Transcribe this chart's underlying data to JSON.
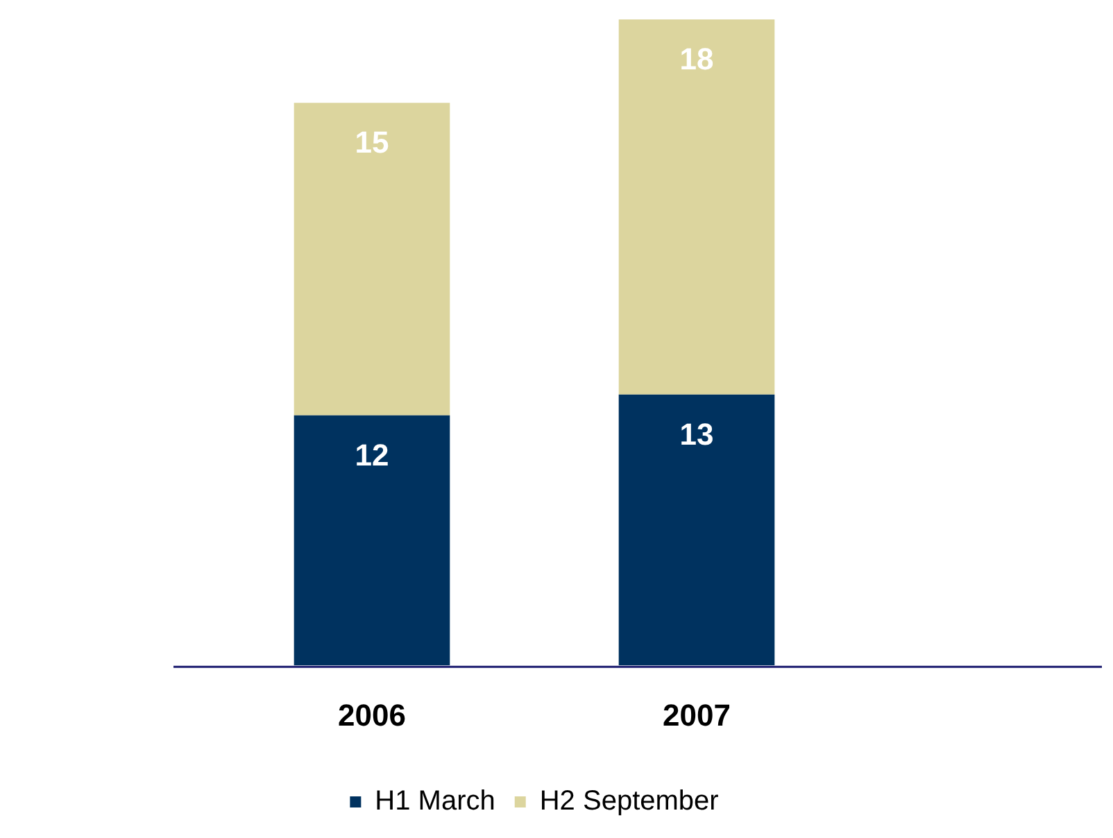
{
  "chart_data": {
    "type": "bar",
    "stacked": true,
    "categories": [
      "2006",
      "2007"
    ],
    "series": [
      {
        "name": "H1 March",
        "color": "#00325f",
        "values": [
          12,
          13
        ]
      },
      {
        "name": "H2 September",
        "color": "#dcd59e",
        "values": [
          15,
          18
        ]
      }
    ],
    "data_labels": true,
    "legend": "bottom",
    "grid": false,
    "tick_labels": "x"
  }
}
